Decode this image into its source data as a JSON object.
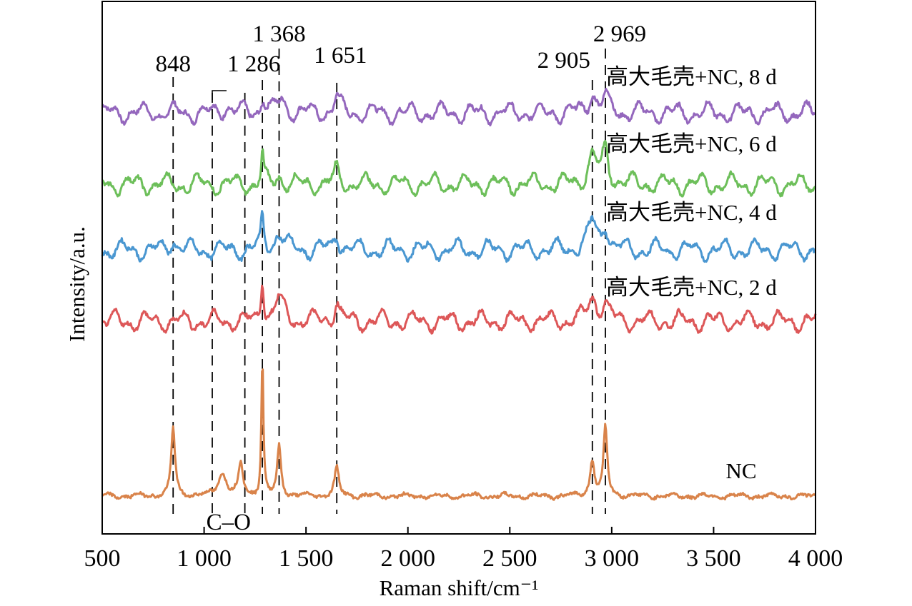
{
  "chart_data": {
    "type": "line",
    "title": "",
    "xlabel": "Raman shift/cm⁻¹",
    "ylabel": "Intensity/a.u.",
    "xlim": [
      500,
      4000
    ],
    "x_ticks": [
      500,
      1000,
      1500,
      2000,
      2500,
      3000,
      3500,
      4000
    ],
    "x_tick_labels": [
      "500",
      "1 000",
      "1 500",
      "2 000",
      "2 500",
      "3 000",
      "3 500",
      "4 000"
    ],
    "y_ticks_shown": false,
    "grid": false,
    "legend": "none",
    "peak_lines": [
      {
        "x": 848,
        "label": "848"
      },
      {
        "x": 1040,
        "label": ""
      },
      {
        "x": 1200,
        "label": ""
      },
      {
        "x": 1286,
        "label": "1 286"
      },
      {
        "x": 1368,
        "label": "1 368"
      },
      {
        "x": 1651,
        "label": "1 651"
      },
      {
        "x": 2905,
        "label": "2 905"
      },
      {
        "x": 2969,
        "label": "2 969"
      }
    ],
    "annotations": [
      {
        "text": "C–O",
        "x_range": [
          1040,
          1200
        ]
      }
    ],
    "series": [
      {
        "name": "高大毛壳+NC, 8 d",
        "color": "#9467bd",
        "offset": 4,
        "peaks": [
          [
            1290,
            0.28,
            12
          ],
          [
            1380,
            0.22,
            25
          ],
          [
            1651,
            0.3,
            15
          ],
          [
            2905,
            0.34,
            22
          ],
          [
            2969,
            0.26,
            18
          ],
          [
            1110,
            0.14,
            20
          ]
        ]
      },
      {
        "name": "高大毛壳+NC, 6 d",
        "color": "#6dbf5a",
        "offset": 3,
        "peaks": [
          [
            1286,
            0.55,
            6
          ],
          [
            1368,
            0.15,
            20
          ],
          [
            1651,
            0.25,
            15
          ],
          [
            2905,
            0.48,
            25
          ],
          [
            2969,
            0.58,
            18
          ]
        ]
      },
      {
        "name": "高大毛壳+NC, 4 d",
        "color": "#4a97d1",
        "offset": 2,
        "peaks": [
          [
            1286,
            0.55,
            8
          ],
          [
            1368,
            0.3,
            25
          ],
          [
            1651,
            0.3,
            15
          ],
          [
            2905,
            0.5,
            25
          ],
          [
            2969,
            0.4,
            18
          ],
          [
            848,
            0.2,
            15
          ]
        ]
      },
      {
        "name": "高大毛壳+NC, 2 d",
        "color": "#dd5758",
        "offset": 1,
        "peaks": [
          [
            1286,
            0.78,
            8
          ],
          [
            1368,
            0.4,
            25
          ],
          [
            1651,
            0.35,
            15
          ],
          [
            2905,
            0.42,
            25
          ],
          [
            2969,
            0.3,
            18
          ]
        ]
      },
      {
        "name": "NC",
        "color": "#d9834a",
        "offset": 0,
        "peaks": [
          [
            848,
            1.2,
            11
          ],
          [
            1090,
            0.4,
            24
          ],
          [
            1180,
            0.58,
            12
          ],
          [
            1286,
            2.4,
            6
          ],
          [
            1368,
            0.88,
            11
          ],
          [
            1651,
            0.48,
            13
          ],
          [
            2905,
            0.62,
            13
          ],
          [
            2969,
            1.2,
            11
          ]
        ]
      }
    ]
  }
}
